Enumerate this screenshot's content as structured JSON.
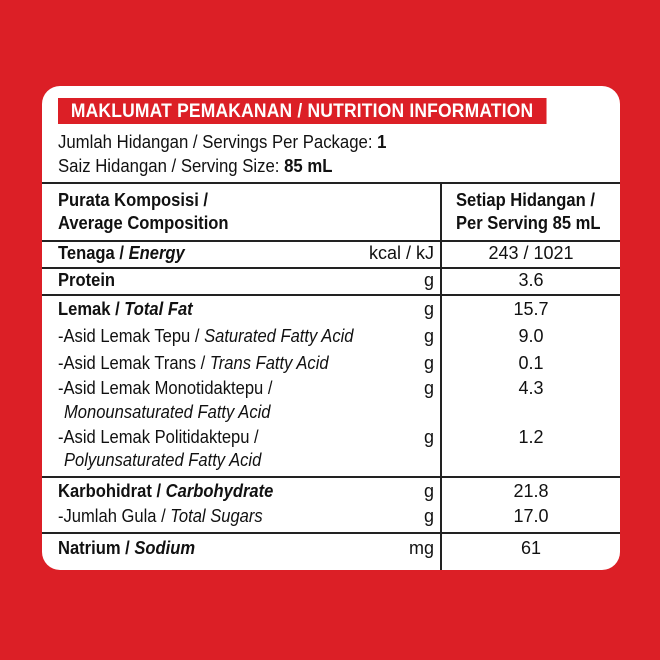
{
  "header": {
    "title": "MAKLUMAT PEMAKANAN / NUTRITION INFORMATION"
  },
  "servings": {
    "per_package_label": "Jumlah Hidangan / Servings Per Package: ",
    "per_package_value": "1",
    "size_label": "Saiz Hidangan / Serving Size: ",
    "size_value": "85 mL"
  },
  "table": {
    "col1_line1": "Purata Komposisi /",
    "col1_line2": "Average Composition",
    "col2_line1": "Setiap Hidangan /",
    "col2_line2": "Per Serving 85 mL"
  },
  "rows": {
    "energy": {
      "malay": "Tenaga /",
      "english": "Energy",
      "unit": "kcal / kJ",
      "value": "243 / 1021"
    },
    "protein": {
      "malay": "Protein",
      "unit": "g",
      "value": "3.6"
    },
    "fat": {
      "malay": "Lemak /",
      "english": "Total Fat",
      "unit": "g",
      "value": "15.7"
    },
    "sat_fat": {
      "malay": "-Asid Lemak Tepu /",
      "english": "Saturated Fatty Acid",
      "unit": "g",
      "value": "9.0"
    },
    "trans_fat": {
      "malay": "-Asid Lemak Trans /",
      "english": "Trans Fatty Acid",
      "unit": "g",
      "value": "0.1"
    },
    "mono_fat": {
      "malay": "-Asid Lemak Monotidaktepu /",
      "english": "Monounsaturated Fatty Acid",
      "unit": "g",
      "value": "4.3"
    },
    "poly_fat": {
      "malay": "-Asid Lemak Politidaktepu /",
      "english": "Polyunsaturated Fatty Acid",
      "unit": "g",
      "value": "1.2"
    },
    "carb": {
      "malay": "Karbohidrat /",
      "english": "Carbohydrate",
      "unit": "g",
      "value": "21.8"
    },
    "sugars": {
      "malay": "-Jumlah Gula /",
      "english": "Total Sugars",
      "unit": "g",
      "value": "17.0"
    },
    "sodium": {
      "malay": "Natrium /",
      "english": "Sodium",
      "unit": "mg",
      "value": "61"
    }
  }
}
